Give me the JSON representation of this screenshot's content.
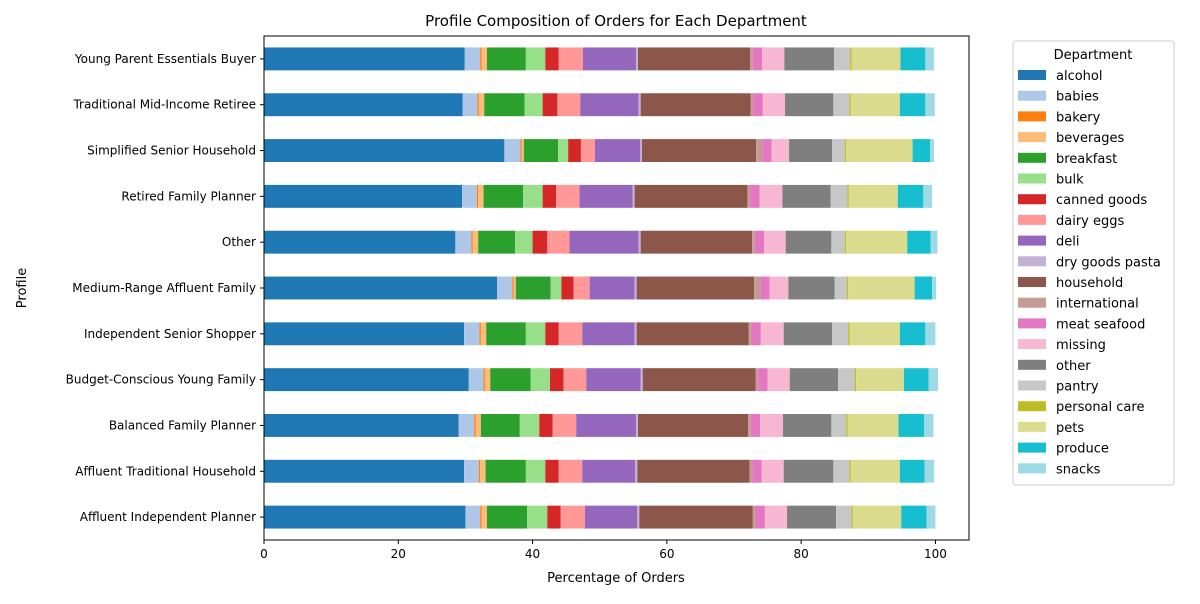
{
  "chart_data": {
    "type": "bar",
    "orientation": "horizontal",
    "stacked": true,
    "title": "Profile Composition of Orders for Each Department",
    "xlabel": "Percentage of Orders",
    "ylabel": "Profile",
    "xlim": [
      0,
      105
    ],
    "xticks": [
      0,
      20,
      40,
      60,
      80,
      100
    ],
    "legend": {
      "title": "Department",
      "placement": "outside-right-top"
    },
    "grid": false,
    "categories": [
      "Affluent Independent Planner",
      "Affluent Traditional Household",
      "Balanced Family Planner",
      "Budget-Conscious Young Family",
      "Independent Senior Shopper",
      "Medium-Range Affluent Family",
      "Other",
      "Retired Family Planner",
      "Simplified Senior Household",
      "Traditional Mid-Income Retiree",
      "Young Parent Essentials Buyer"
    ],
    "series": [
      {
        "name": "alcohol",
        "color": "#1f77b4",
        "values": [
          30.0,
          29.8,
          29.0,
          30.5,
          29.8,
          34.7,
          28.5,
          29.5,
          35.8,
          29.6,
          29.9
        ]
      },
      {
        "name": "babies",
        "color": "#aec7e8",
        "values": [
          2.2,
          2.2,
          2.3,
          2.2,
          2.3,
          2.3,
          2.4,
          2.2,
          2.4,
          2.2,
          2.3
        ]
      },
      {
        "name": "bakery",
        "color": "#ff7f0e",
        "values": [
          0.2,
          0.2,
          0.2,
          0.2,
          0.2,
          0.2,
          0.2,
          0.2,
          0.2,
          0.2,
          0.2
        ]
      },
      {
        "name": "beverages",
        "color": "#ffbb78",
        "values": [
          0.8,
          0.8,
          0.8,
          0.8,
          0.8,
          0.3,
          0.8,
          0.8,
          0.3,
          0.8,
          0.8
        ]
      },
      {
        "name": "breakfast",
        "color": "#2ca02c",
        "values": [
          6.0,
          6.0,
          5.8,
          6.0,
          5.9,
          5.2,
          5.5,
          5.9,
          5.1,
          6.0,
          5.8
        ]
      },
      {
        "name": "bulk",
        "color": "#98df8a",
        "values": [
          3.0,
          2.9,
          2.9,
          2.9,
          2.9,
          1.6,
          2.6,
          2.9,
          1.5,
          2.7,
          2.9
        ]
      },
      {
        "name": "canned goods",
        "color": "#d62728",
        "values": [
          2.0,
          2.0,
          2.0,
          2.0,
          2.0,
          1.8,
          2.2,
          2.0,
          1.9,
          2.2,
          2.0
        ]
      },
      {
        "name": "dairy eggs",
        "color": "#ff9896",
        "values": [
          3.6,
          3.5,
          3.5,
          3.4,
          3.5,
          2.4,
          3.3,
          3.5,
          2.1,
          3.4,
          3.6
        ]
      },
      {
        "name": "deli",
        "color": "#9467bd",
        "values": [
          7.8,
          7.9,
          8.9,
          8.1,
          7.8,
          6.7,
          10.3,
          7.9,
          6.7,
          8.7,
          7.9
        ]
      },
      {
        "name": "dry goods pasta",
        "color": "#c5b0d5",
        "values": [
          0.3,
          0.3,
          0.3,
          0.3,
          0.3,
          0.3,
          0.3,
          0.3,
          0.3,
          0.3,
          0.3
        ]
      },
      {
        "name": "household",
        "color": "#8c564b",
        "values": [
          16.9,
          16.7,
          16.4,
          16.8,
          16.7,
          17.5,
          16.6,
          16.8,
          17.0,
          16.4,
          16.7
        ]
      },
      {
        "name": "international",
        "color": "#c49c94",
        "values": [
          0.4,
          0.4,
          0.4,
          0.4,
          0.4,
          0.9,
          0.4,
          0.4,
          0.9,
          0.4,
          0.4
        ]
      },
      {
        "name": "meat seafood",
        "color": "#e377c2",
        "values": [
          1.4,
          1.4,
          1.4,
          1.4,
          1.4,
          1.4,
          1.4,
          1.4,
          1.4,
          1.4,
          1.4
        ]
      },
      {
        "name": "missing",
        "color": "#f7b6d2",
        "values": [
          3.3,
          3.3,
          3.4,
          3.3,
          3.4,
          2.8,
          3.2,
          3.4,
          2.6,
          3.3,
          3.3
        ]
      },
      {
        "name": "other",
        "color": "#7f7f7f",
        "values": [
          7.3,
          7.4,
          7.2,
          7.2,
          7.2,
          6.9,
          6.8,
          7.2,
          6.4,
          7.2,
          7.4
        ]
      },
      {
        "name": "pantry",
        "color": "#c7c7c7",
        "values": [
          2.3,
          2.4,
          2.2,
          2.5,
          2.4,
          1.8,
          2.0,
          2.5,
          1.9,
          2.4,
          2.4
        ]
      },
      {
        "name": "personal care",
        "color": "#bcbd22",
        "values": [
          0.2,
          0.2,
          0.2,
          0.2,
          0.2,
          0.2,
          0.2,
          0.2,
          0.2,
          0.2,
          0.2
        ]
      },
      {
        "name": "pets",
        "color": "#dbdb8d",
        "values": [
          7.2,
          7.3,
          7.6,
          7.1,
          7.5,
          9.9,
          9.1,
          7.3,
          9.9,
          7.3,
          7.3
        ]
      },
      {
        "name": "produce",
        "color": "#17becf",
        "values": [
          3.8,
          3.7,
          3.8,
          3.7,
          3.8,
          2.6,
          3.5,
          3.8,
          2.6,
          3.8,
          3.7
        ]
      },
      {
        "name": "snacks",
        "color": "#9edae5",
        "values": [
          1.3,
          1.4,
          1.4,
          1.4,
          1.5,
          0.6,
          1.0,
          1.3,
          0.6,
          1.4,
          1.3
        ]
      }
    ]
  }
}
